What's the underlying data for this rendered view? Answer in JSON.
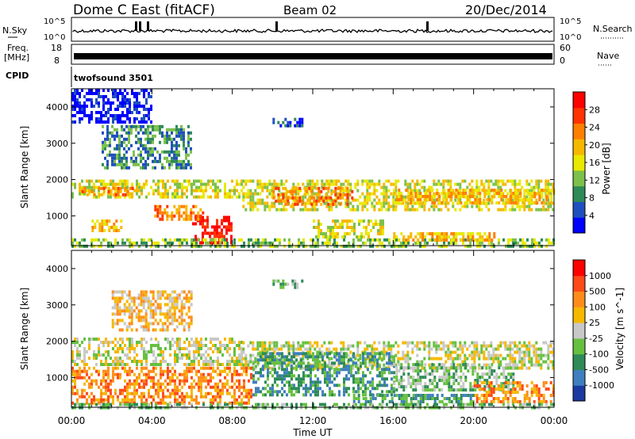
{
  "header": {
    "title": "Dome C East (fitACF)",
    "beam": "Beam 02",
    "date": "20/Dec/2014"
  },
  "aux_panels": {
    "nsky_label": "N.Sky",
    "nsearch_label": "N.Search",
    "freq_label_line1": "Freq.",
    "freq_label_line2": "[MHz]",
    "nave_label": "Nave",
    "cpid_label": "CPID",
    "cpid_value": "twofsound 3501",
    "noise_ticks": [
      "10^5",
      "10^0"
    ],
    "freq_ticks": [
      "18",
      "8"
    ],
    "nave_ticks": [
      "60",
      "0"
    ]
  },
  "chart_data": [
    {
      "type": "heatmap",
      "name": "power",
      "ylabel": "Slant Range [km]",
      "ylim": [
        180,
        4500
      ],
      "yticks": [
        1000,
        2000,
        3000,
        4000
      ],
      "xlim": [
        0,
        24
      ],
      "colorbar": {
        "label": "Power [dB]",
        "ticks": [
          "28",
          "24",
          "20",
          "16",
          "12",
          "8",
          "4"
        ],
        "colors": [
          "#0000ff",
          "#1f4fbf",
          "#2e8b57",
          "#7cc14a",
          "#e8e800",
          "#f5b800",
          "#ff7f00",
          "#ff3300",
          "#ff0000"
        ]
      },
      "bands": [
        {
          "t0": 0.0,
          "t1": 8.5,
          "r0": 1500,
          "r1": 2000,
          "level": 4
        },
        {
          "t0": 0.5,
          "t1": 3.0,
          "r0": 1550,
          "r1": 1800,
          "level": 6
        },
        {
          "t0": 8.5,
          "t1": 24.0,
          "r0": 1200,
          "r1": 2000,
          "level": 4
        },
        {
          "t0": 10.0,
          "t1": 14.0,
          "r0": 1300,
          "r1": 1800,
          "level": 6
        },
        {
          "t0": 16.0,
          "t1": 24.0,
          "r0": 1400,
          "r1": 1750,
          "level": 5
        },
        {
          "t0": 6.0,
          "t1": 8.0,
          "r0": 300,
          "r1": 1000,
          "level": 8
        },
        {
          "t0": 4.0,
          "t1": 6.5,
          "r0": 900,
          "r1": 1300,
          "level": 6
        },
        {
          "t0": 1.0,
          "t1": 2.5,
          "r0": 600,
          "r1": 900,
          "level": 5
        },
        {
          "t0": 0.0,
          "t1": 24.0,
          "r0": 200,
          "r1": 380,
          "level": 3
        },
        {
          "t0": 16.0,
          "t1": 21.0,
          "r0": 350,
          "r1": 550,
          "level": 5
        },
        {
          "t0": 12.0,
          "t1": 15.5,
          "r0": 400,
          "r1": 900,
          "level": 4
        },
        {
          "t0": 1.5,
          "t1": 6.0,
          "r0": 2300,
          "r1": 3500,
          "level": 2
        },
        {
          "t0": 10.0,
          "t1": 11.5,
          "r0": 3500,
          "r1": 3700,
          "level": 1
        },
        {
          "t0": 0.0,
          "t1": 4.0,
          "r0": 3600,
          "r1": 4500,
          "level": 0
        }
      ]
    },
    {
      "type": "heatmap",
      "name": "velocity",
      "ylabel": "Slant Range [km]",
      "xlabel": "Time UT",
      "ylim": [
        180,
        4500
      ],
      "yticks": [
        1000,
        2000,
        3000,
        4000
      ],
      "xlim": [
        0,
        24
      ],
      "xticks": [
        "00:00",
        "04:00",
        "08:00",
        "12:00",
        "16:00",
        "20:00",
        "00:00"
      ],
      "colorbar": {
        "label": "Velocity [m s^-1]",
        "ticks": [
          "1000",
          "500",
          "100",
          "25",
          "-25",
          "-100",
          "-500",
          "-1000"
        ],
        "colors": [
          "#1a3aa0",
          "#3f7fbf",
          "#2e8b57",
          "#66c040",
          "#c8c8c8",
          "#f5b800",
          "#ff8c1a",
          "#ff4a1a",
          "#ff0000"
        ]
      },
      "bands": [
        {
          "t0": 0.0,
          "t1": 8.5,
          "r0": 1400,
          "r1": 2100,
          "level": 4
        },
        {
          "t0": 8.5,
          "t1": 24.0,
          "r0": 1300,
          "r1": 2000,
          "level": 4
        },
        {
          "t0": 0.0,
          "t1": 9.0,
          "r0": 300,
          "r1": 1300,
          "level": 6
        },
        {
          "t0": 9.0,
          "t1": 16.0,
          "r0": 500,
          "r1": 1700,
          "level": 2
        },
        {
          "t0": 16.0,
          "t1": 22.0,
          "r0": 700,
          "r1": 1400,
          "level": 3
        },
        {
          "t0": 20.0,
          "t1": 24.0,
          "r0": 300,
          "r1": 900,
          "level": 6
        },
        {
          "t0": 14.0,
          "t1": 20.0,
          "r0": 300,
          "r1": 550,
          "level": 2
        },
        {
          "t0": 0.0,
          "t1": 24.0,
          "r0": 180,
          "r1": 300,
          "level": 3
        },
        {
          "t0": 2.0,
          "t1": 6.0,
          "r0": 2300,
          "r1": 3400,
          "level": 5
        },
        {
          "t0": 10.0,
          "t1": 11.5,
          "r0": 3500,
          "r1": 3700,
          "level": 3
        }
      ]
    }
  ]
}
